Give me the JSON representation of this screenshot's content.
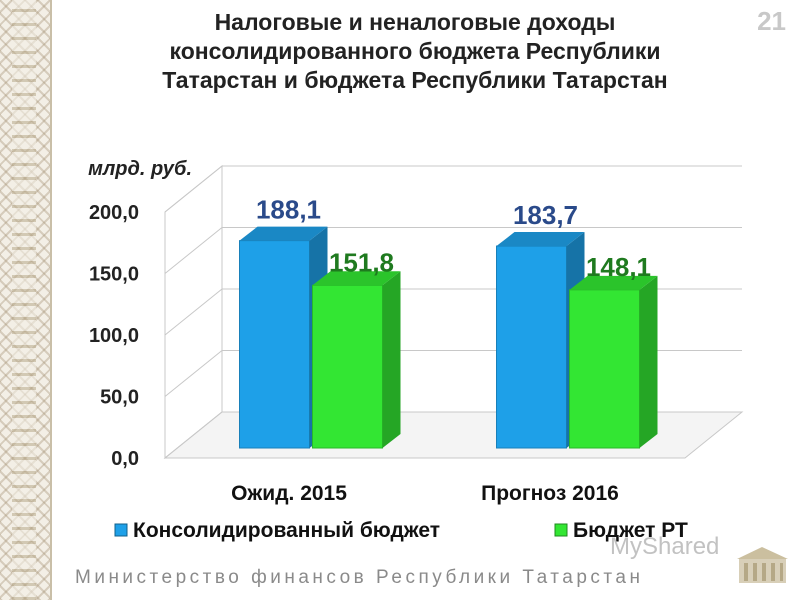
{
  "page_number": "21",
  "title_lines": [
    "Налоговые и неналоговые доходы",
    "консолидированного бюджета Республики",
    "Татарстан  и бюджета Республики Татарстан"
  ],
  "footer": "Министерство финансов Республики Татарстан",
  "watermark": "MyShared",
  "colors": {
    "series1": "#1ea0e8",
    "series2": "#33e633",
    "value_label": "#2a4a8a",
    "value_label2": "#1f7a1f"
  },
  "chart_data": {
    "type": "bar",
    "ylabel": "млрд. руб.",
    "ylim": [
      0,
      200
    ],
    "yticks": [
      "0,0",
      "50,0",
      "100,0",
      "150,0",
      "200,0"
    ],
    "categories": [
      "Ожид. 2015",
      "Прогноз 2016"
    ],
    "series": [
      {
        "name": "Консолидированный бюджет",
        "values": [
          188.1,
          183.7
        ],
        "labels": [
          "188,1",
          "183,7"
        ]
      },
      {
        "name": "Бюджет РТ",
        "values": [
          151.8,
          148.1
        ],
        "labels": [
          "151,8",
          "148,1"
        ]
      }
    ],
    "grid": true,
    "legend": "bottom"
  }
}
